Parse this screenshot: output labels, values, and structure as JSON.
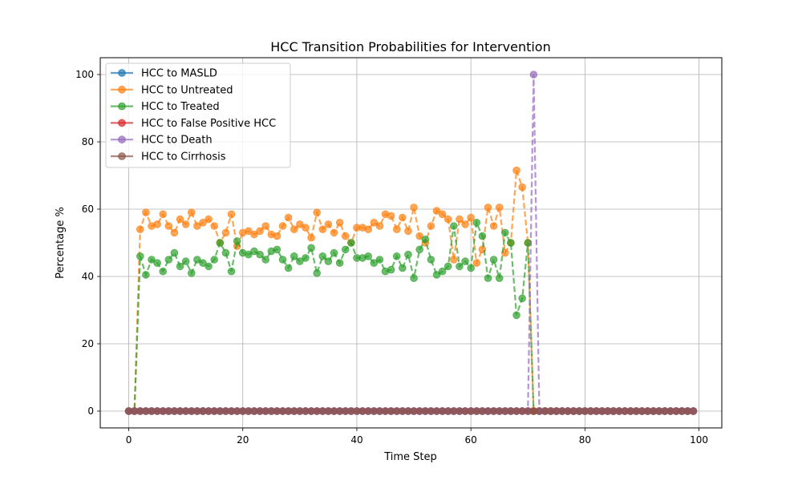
{
  "chart_data": {
    "type": "line",
    "title": "HCC Transition Probabilities for Intervention",
    "xlabel": "Time Step",
    "ylabel": "Percentage %",
    "xlim": [
      -5,
      104
    ],
    "ylim": [
      -5,
      105
    ],
    "xticks": [
      0,
      20,
      40,
      60,
      80,
      100
    ],
    "yticks": [
      0,
      20,
      40,
      60,
      80,
      100
    ],
    "grid": true,
    "legend_position": "upper-left",
    "x": [
      0,
      1,
      2,
      3,
      4,
      5,
      6,
      7,
      8,
      9,
      10,
      11,
      12,
      13,
      14,
      15,
      16,
      17,
      18,
      19,
      20,
      21,
      22,
      23,
      24,
      25,
      26,
      27,
      28,
      29,
      30,
      31,
      32,
      33,
      34,
      35,
      36,
      37,
      38,
      39,
      40,
      41,
      42,
      43,
      44,
      45,
      46,
      47,
      48,
      49,
      50,
      51,
      52,
      53,
      54,
      55,
      56,
      57,
      58,
      59,
      60,
      61,
      62,
      63,
      64,
      65,
      66,
      67,
      68,
      69,
      70,
      71,
      72,
      73,
      74,
      75,
      76,
      77,
      78,
      79,
      80,
      81,
      82,
      83,
      84,
      85,
      86,
      87,
      88,
      89,
      90,
      91,
      92,
      93,
      94,
      95,
      96,
      97,
      98,
      99
    ],
    "series": [
      {
        "name": "HCC to MASLD",
        "color": "#1f77b4",
        "values": [
          0,
          0,
          0,
          0,
          0,
          0,
          0,
          0,
          0,
          0,
          0,
          0,
          0,
          0,
          0,
          0,
          0,
          0,
          0,
          0,
          0,
          0,
          0,
          0,
          0,
          0,
          0,
          0,
          0,
          0,
          0,
          0,
          0,
          0,
          0,
          0,
          0,
          0,
          0,
          0,
          0,
          0,
          0,
          0,
          0,
          0,
          0,
          0,
          0,
          0,
          0,
          0,
          0,
          0,
          0,
          0,
          0,
          0,
          0,
          0,
          0,
          0,
          0,
          0,
          0,
          0,
          0,
          0,
          0,
          0,
          0,
          0,
          0,
          0,
          0,
          0,
          0,
          0,
          0,
          0,
          0,
          0,
          0,
          0,
          0,
          0,
          0,
          0,
          0,
          0,
          0,
          0,
          0,
          0,
          0,
          0,
          0,
          0,
          0,
          0
        ]
      },
      {
        "name": "HCC to Untreated",
        "color": "#ff7f0e",
        "values": [
          0,
          0,
          54,
          59,
          55,
          55.5,
          58.5,
          55,
          53,
          57,
          55.5,
          59,
          55,
          56,
          57,
          55,
          50,
          53,
          58.5,
          49,
          53,
          53.5,
          52.5,
          53.5,
          55,
          52.5,
          52,
          55,
          57.5,
          54,
          55.5,
          54.5,
          51.5,
          59,
          54,
          55.5,
          53,
          56,
          52,
          50,
          54.5,
          54.5,
          54,
          56,
          55,
          58.5,
          58,
          54,
          57.5,
          53.5,
          60.5,
          52,
          50,
          55,
          59.5,
          58.5,
          57,
          45,
          57,
          55.5,
          57.5,
          44,
          48,
          60.5,
          55,
          60.5,
          47,
          50,
          71.5,
          66.5,
          50,
          0,
          0,
          0,
          0,
          0,
          0,
          0,
          0,
          0,
          0,
          0,
          0,
          0,
          0,
          0,
          0,
          0,
          0,
          0,
          0,
          0,
          0,
          0,
          0,
          0,
          0,
          0,
          0,
          0
        ]
      },
      {
        "name": "HCC to Treated",
        "color": "#2ca02c",
        "values": [
          0,
          0,
          46,
          40.5,
          45,
          44,
          41.5,
          45,
          47,
          43,
          44.5,
          41,
          45,
          44,
          43,
          45,
          50,
          47,
          41.5,
          50.5,
          47,
          46.5,
          47.5,
          46.5,
          45,
          47.5,
          48,
          45,
          42.5,
          46,
          44.5,
          45.5,
          48.5,
          41,
          46,
          44.5,
          47,
          44,
          48,
          50,
          45.5,
          45.5,
          46,
          44,
          45,
          41.5,
          42,
          46,
          42.5,
          46.5,
          39.5,
          48,
          51,
          45,
          40.5,
          41.5,
          43,
          55,
          43,
          44.5,
          42.5,
          56,
          52,
          39.5,
          45,
          39.5,
          53,
          50,
          28.5,
          33.5,
          50,
          0,
          0,
          0,
          0,
          0,
          0,
          0,
          0,
          0,
          0,
          0,
          0,
          0,
          0,
          0,
          0,
          0,
          0,
          0,
          0,
          0,
          0,
          0,
          0,
          0,
          0,
          0,
          0,
          0
        ]
      },
      {
        "name": "HCC to False Positive HCC",
        "color": "#d62728",
        "values": [
          0,
          0,
          0,
          0,
          0,
          0,
          0,
          0,
          0,
          0,
          0,
          0,
          0,
          0,
          0,
          0,
          0,
          0,
          0,
          0,
          0,
          0,
          0,
          0,
          0,
          0,
          0,
          0,
          0,
          0,
          0,
          0,
          0,
          0,
          0,
          0,
          0,
          0,
          0,
          0,
          0,
          0,
          0,
          0,
          0,
          0,
          0,
          0,
          0,
          0,
          0,
          0,
          0,
          0,
          0,
          0,
          0,
          0,
          0,
          0,
          0,
          0,
          0,
          0,
          0,
          0,
          0,
          0,
          0,
          0,
          0,
          0,
          0,
          0,
          0,
          0,
          0,
          0,
          0,
          0,
          0,
          0,
          0,
          0,
          0,
          0,
          0,
          0,
          0,
          0,
          0,
          0,
          0,
          0,
          0,
          0,
          0,
          0,
          0,
          0
        ]
      },
      {
        "name": "HCC to Death",
        "color": "#9467bd",
        "values": [
          0,
          0,
          0,
          0,
          0,
          0,
          0,
          0,
          0,
          0,
          0,
          0,
          0,
          0,
          0,
          0,
          0,
          0,
          0,
          0,
          0,
          0,
          0,
          0,
          0,
          0,
          0,
          0,
          0,
          0,
          0,
          0,
          0,
          0,
          0,
          0,
          0,
          0,
          0,
          0,
          0,
          0,
          0,
          0,
          0,
          0,
          0,
          0,
          0,
          0,
          0,
          0,
          0,
          0,
          0,
          0,
          0,
          0,
          0,
          0,
          0,
          0,
          0,
          0,
          0,
          0,
          0,
          0,
          0,
          0,
          0,
          100,
          0,
          0,
          0,
          0,
          0,
          0,
          0,
          0,
          0,
          0,
          0,
          0,
          0,
          0,
          0,
          0,
          0,
          0,
          0,
          0,
          0,
          0,
          0,
          0,
          0,
          0,
          0,
          0
        ]
      },
      {
        "name": "HCC to Cirrhosis",
        "color": "#8c564b",
        "values": [
          0,
          0,
          0,
          0,
          0,
          0,
          0,
          0,
          0,
          0,
          0,
          0,
          0,
          0,
          0,
          0,
          0,
          0,
          0,
          0,
          0,
          0,
          0,
          0,
          0,
          0,
          0,
          0,
          0,
          0,
          0,
          0,
          0,
          0,
          0,
          0,
          0,
          0,
          0,
          0,
          0,
          0,
          0,
          0,
          0,
          0,
          0,
          0,
          0,
          0,
          0,
          0,
          0,
          0,
          0,
          0,
          0,
          0,
          0,
          0,
          0,
          0,
          0,
          0,
          0,
          0,
          0,
          0,
          0,
          0,
          0,
          0,
          0,
          0,
          0,
          0,
          0,
          0,
          0,
          0,
          0,
          0,
          0,
          0,
          0,
          0,
          0,
          0,
          0,
          0,
          0,
          0,
          0,
          0,
          0,
          0,
          0,
          0,
          0,
          0
        ]
      }
    ]
  }
}
